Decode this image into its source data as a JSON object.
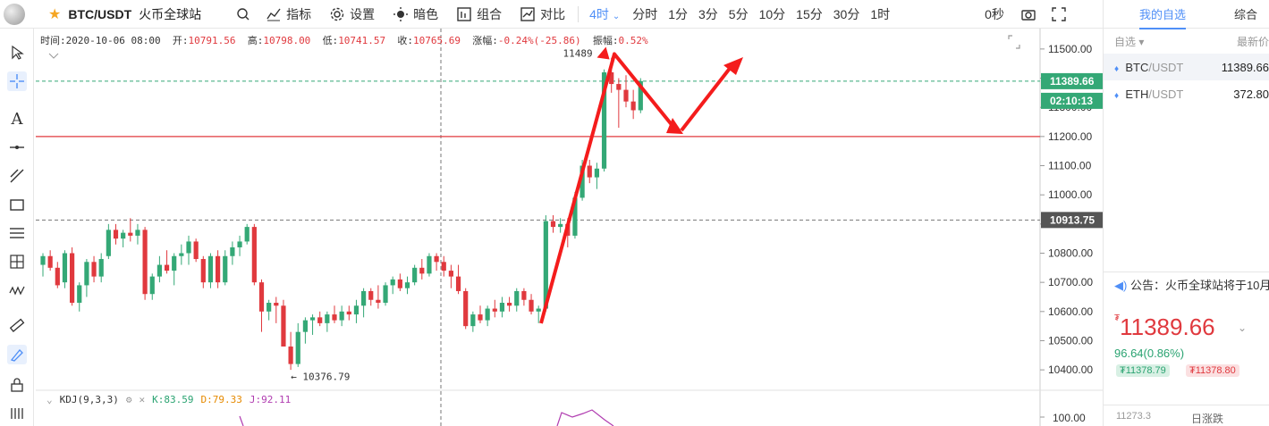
{
  "topbar": {
    "pair": "BTC/USDT",
    "exchange": "火币全球站",
    "indicator_label": "指标",
    "settings_label": "设置",
    "theme_label": "暗色",
    "combo_label": "组合",
    "compare_label": "对比",
    "interval_active": "4时",
    "periods": [
      "分时",
      "1分",
      "3分",
      "5分",
      "10分",
      "15分",
      "30分",
      "1时"
    ],
    "countdown": "0秒"
  },
  "info": {
    "time_label": "时间:",
    "time": "2020-10-06 08:00",
    "open_label": "开:",
    "open": "10791.56",
    "high_label": "高:",
    "high": "10798.00",
    "low_label": "低:",
    "low": "10741.57",
    "close_label": "收:",
    "close": "10765.69",
    "change_label": "涨幅:",
    "change": "-0.24%(-25.86)",
    "amplitude_label": "振幅:",
    "amplitude": "0.52%"
  },
  "kdj": {
    "name": "KDJ(9,3,3)",
    "k": "K:83.59",
    "d": "D:79.33",
    "j": "J:92.11"
  },
  "colors": {
    "up": "#34a876",
    "down": "#e0393e",
    "accent": "#4f8ff7",
    "price_tag": "#34a876",
    "level_tag": "#555555"
  },
  "chart_data": {
    "type": "candlestick",
    "yaxis_ticks": [
      "11500.00",
      "11400.00",
      "11300.00",
      "11200.00",
      "11100.00",
      "11000.00",
      "10900.00",
      "10800.00",
      "10700.00",
      "10600.00",
      "10500.00",
      "10400.00"
    ],
    "ylim": [
      10330,
      11570
    ],
    "kdj_tick": "100.00",
    "last_price": "11389.66",
    "countdown_tag": "02:10:13",
    "level_price": "10913.75",
    "red_line_price": 11200,
    "high_annotation": "11489",
    "low_annotation": "10376.79",
    "candles": [
      [
        10760,
        10800,
        10720,
        10790
      ],
      [
        10790,
        10810,
        10740,
        10750
      ],
      [
        10750,
        10770,
        10680,
        10690
      ],
      [
        10700,
        10810,
        10680,
        10800
      ],
      [
        10800,
        10820,
        10620,
        10630
      ],
      [
        10630,
        10700,
        10600,
        10690
      ],
      [
        10690,
        10780,
        10650,
        10770
      ],
      [
        10770,
        10790,
        10700,
        10720
      ],
      [
        10720,
        10800,
        10700,
        10780
      ],
      [
        10790,
        10900,
        10780,
        10880
      ],
      [
        10880,
        10900,
        10830,
        10850
      ],
      [
        10850,
        10880,
        10820,
        10870
      ],
      [
        10870,
        10920,
        10840,
        10860
      ],
      [
        10860,
        10900,
        10830,
        10880
      ],
      [
        10880,
        10890,
        10640,
        10660
      ],
      [
        10660,
        10730,
        10640,
        10720
      ],
      [
        10720,
        10790,
        10700,
        10760
      ],
      [
        10760,
        10810,
        10730,
        10740
      ],
      [
        10740,
        10800,
        10690,
        10790
      ],
      [
        10790,
        10830,
        10760,
        10800
      ],
      [
        10800,
        10860,
        10760,
        10840
      ],
      [
        10840,
        10850,
        10770,
        10780
      ],
      [
        10780,
        10790,
        10680,
        10700
      ],
      [
        10700,
        10800,
        10680,
        10790
      ],
      [
        10790,
        10810,
        10680,
        10700
      ],
      [
        10700,
        10810,
        10690,
        10790
      ],
      [
        10790,
        10840,
        10760,
        10820
      ],
      [
        10820,
        10860,
        10790,
        10840
      ],
      [
        10840,
        10900,
        10830,
        10890
      ],
      [
        10890,
        10900,
        10690,
        10700
      ],
      [
        10700,
        10710,
        10530,
        10600
      ],
      [
        10600,
        10640,
        10570,
        10630
      ],
      [
        10630,
        10650,
        10560,
        10620
      ],
      [
        10620,
        10640,
        10480,
        10480
      ],
      [
        10480,
        10530,
        10400,
        10420
      ],
      [
        10420,
        10560,
        10410,
        10530
      ],
      [
        10530,
        10580,
        10490,
        10570
      ],
      [
        10570,
        10590,
        10520,
        10580
      ],
      [
        10580,
        10600,
        10550,
        10560
      ],
      [
        10560,
        10600,
        10530,
        10590
      ],
      [
        10590,
        10620,
        10560,
        10570
      ],
      [
        10570,
        10620,
        10550,
        10600
      ],
      [
        10600,
        10620,
        10570,
        10590
      ],
      [
        10590,
        10640,
        10560,
        10620
      ],
      [
        10620,
        10680,
        10580,
        10670
      ],
      [
        10670,
        10680,
        10620,
        10640
      ],
      [
        10640,
        10690,
        10610,
        10630
      ],
      [
        10630,
        10700,
        10620,
        10690
      ],
      [
        10690,
        10720,
        10660,
        10710
      ],
      [
        10710,
        10730,
        10670,
        10680
      ],
      [
        10680,
        10720,
        10660,
        10700
      ],
      [
        10700,
        10760,
        10690,
        10750
      ],
      [
        10750,
        10780,
        10710,
        10730
      ],
      [
        10730,
        10800,
        10720,
        10790
      ],
      [
        10790,
        10800,
        10740,
        10770
      ],
      [
        10770,
        10790,
        10720,
        10740
      ],
      [
        10740,
        10760,
        10680,
        10720
      ],
      [
        10720,
        10760,
        10660,
        10670
      ],
      [
        10670,
        10680,
        10540,
        10550
      ],
      [
        10550,
        10600,
        10530,
        10590
      ],
      [
        10590,
        10620,
        10560,
        10570
      ],
      [
        10570,
        10620,
        10550,
        10610
      ],
      [
        10610,
        10640,
        10580,
        10600
      ],
      [
        10600,
        10650,
        10580,
        10630
      ],
      [
        10630,
        10650,
        10600,
        10620
      ],
      [
        10620,
        10680,
        10600,
        10670
      ],
      [
        10670,
        10680,
        10620,
        10640
      ],
      [
        10640,
        10660,
        10590,
        10600
      ],
      [
        10600,
        10620,
        10560,
        10610
      ],
      [
        10610,
        10930,
        10600,
        10910
      ],
      [
        10910,
        10930,
        10870,
        10890
      ],
      [
        10890,
        10920,
        10870,
        10900
      ],
      [
        10900,
        10920,
        10820,
        10860
      ],
      [
        10860,
        11010,
        10850,
        10990
      ],
      [
        10990,
        11120,
        10980,
        11100
      ],
      [
        11100,
        11120,
        11040,
        11060
      ],
      [
        11060,
        11110,
        11020,
        11090
      ],
      [
        11090,
        11430,
        11080,
        11420
      ],
      [
        11420,
        11470,
        11350,
        11380
      ],
      [
        11380,
        11400,
        11230,
        11360
      ],
      [
        11360,
        11410,
        11300,
        11320
      ],
      [
        11320,
        11360,
        11260,
        11290
      ],
      [
        11290,
        11400,
        11280,
        11390
      ]
    ]
  },
  "right_panel": {
    "tab_active": "我的自选",
    "tab_other": "综合",
    "head_left": "自选",
    "head_right": "最新价",
    "items": [
      {
        "base": "BTC",
        "quote": "/USDT",
        "price": "11389.66"
      },
      {
        "base": "ETH",
        "quote": "/USDT",
        "price": "372.80"
      }
    ],
    "notice": "公告：火币全球站将于10月",
    "big_price": "11389.66",
    "change": "96.64(0.86%)",
    "pill_left": "₮11378.79",
    "pill_right": "₮11378.80",
    "bottom_left": "11273.3",
    "bottom_center": "日涨跌"
  }
}
